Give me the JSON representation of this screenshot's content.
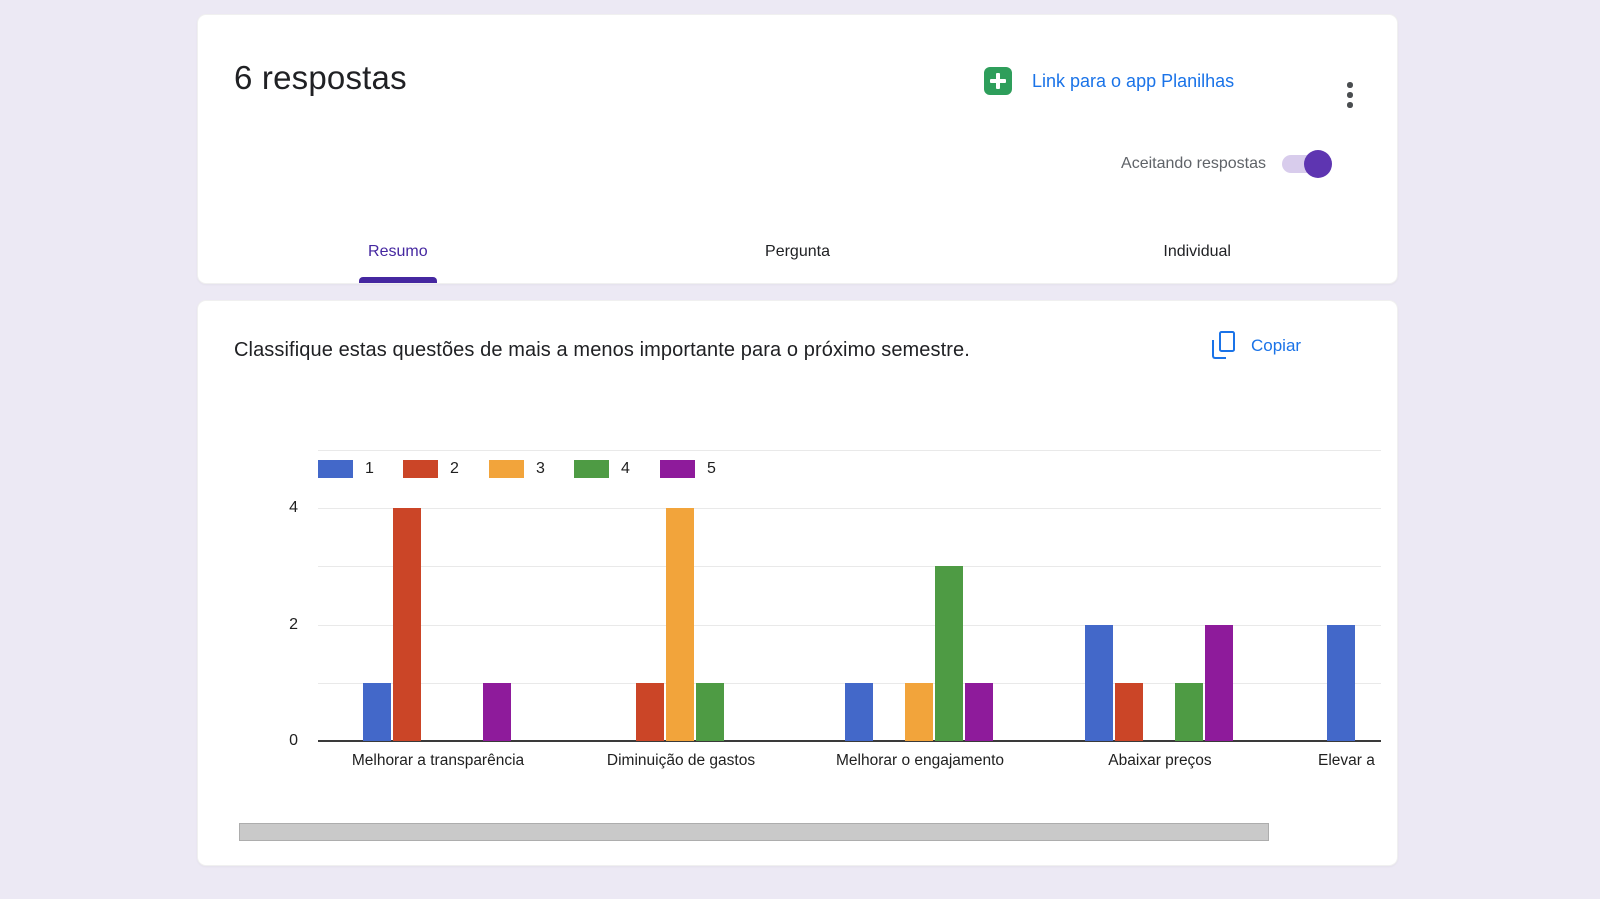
{
  "header": {
    "title": "6 respostas",
    "sheets_link_label": "Link para o app Planilhas",
    "accepting_label": "Aceitando respostas",
    "accepting_on": true,
    "tabs": [
      {
        "label": "Resumo",
        "active": true
      },
      {
        "label": "Pergunta",
        "active": false
      },
      {
        "label": "Individual",
        "active": false
      }
    ]
  },
  "question_card": {
    "title": "Classifique estas questões de mais a menos importante para o próximo semestre.",
    "copy_label": "Copiar"
  },
  "chart_data": {
    "type": "bar",
    "title": "Classifique estas questões de mais a menos importante para o próximo semestre.",
    "categories": [
      "Melhorar a transparência",
      "Diminuição de gastos",
      "Melhorar o engajamento",
      "Abaixar preços",
      "Elevar a"
    ],
    "series": [
      {
        "name": "1",
        "color": "#4368C9",
        "values": [
          1,
          0,
          1,
          2,
          2
        ]
      },
      {
        "name": "2",
        "color": "#CB4527",
        "values": [
          4,
          1,
          0,
          1,
          0
        ]
      },
      {
        "name": "3",
        "color": "#F2A43B",
        "values": [
          0,
          4,
          1,
          0,
          0
        ]
      },
      {
        "name": "4",
        "color": "#4E9B44",
        "values": [
          0,
          1,
          3,
          1,
          0
        ]
      },
      {
        "name": "5",
        "color": "#8E1B9B",
        "values": [
          1,
          0,
          1,
          2,
          0
        ]
      }
    ],
    "xlabel": "",
    "ylabel": "",
    "ylim": [
      0,
      5
    ],
    "ytick_labels": [
      "0",
      "2",
      "4"
    ],
    "grid": true,
    "legend_position": "top-left",
    "last_category_clipped": true
  },
  "colors": {
    "page_background": "#ECE9F4",
    "card_background": "#FFFFFF",
    "accent_purple": "#4527A0",
    "toggle_knob": "#5E35B1",
    "toggle_track": "#D8CCEC",
    "link_blue": "#1A73E8",
    "sheets_green": "#2E9E5B",
    "gridline": "#E9E9E9",
    "axis_line": "#3A3A3A",
    "scrollbar": "#C9C9C9"
  }
}
